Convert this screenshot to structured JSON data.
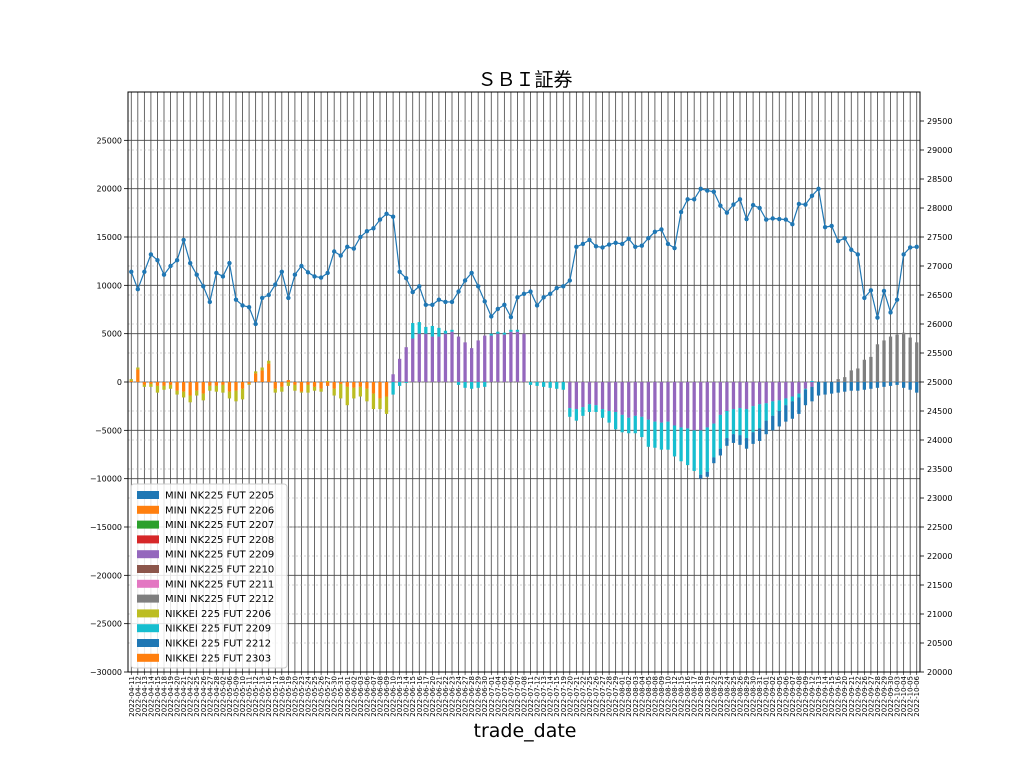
{
  "chart_data": {
    "type": "bar",
    "stacked": true,
    "title": "ＳＢＩ証券",
    "xlabel": "trade_date",
    "ylabel": "",
    "ylim": [
      -30000,
      30000
    ],
    "yticks": [
      -30000,
      -25000,
      -20000,
      -15000,
      -10000,
      -5000,
      0,
      5000,
      10000,
      15000,
      20000,
      25000
    ],
    "y2lim": [
      20000,
      30000
    ],
    "y2ticks": [
      20000,
      20500,
      21000,
      21500,
      22000,
      22500,
      23000,
      23500,
      24000,
      24500,
      25000,
      25500,
      26000,
      26500,
      27000,
      27500,
      28000,
      28500,
      29000,
      29500
    ],
    "grid": true,
    "legend_position": "lower-left",
    "dates": [
      "2022-04-11",
      "2022-04-12",
      "2022-04-13",
      "2022-04-14",
      "2022-04-15",
      "2022-04-18",
      "2022-04-19",
      "2022-04-20",
      "2022-04-21",
      "2022-04-22",
      "2022-04-25",
      "2022-04-26",
      "2022-04-27",
      "2022-04-28",
      "2022-05-02",
      "2022-05-06",
      "2022-05-09",
      "2022-05-10",
      "2022-05-11",
      "2022-05-12",
      "2022-05-13",
      "2022-05-16",
      "2022-05-17",
      "2022-05-18",
      "2022-05-19",
      "2022-05-20",
      "2022-05-23",
      "2022-05-24",
      "2022-05-25",
      "2022-05-26",
      "2022-05-27",
      "2022-05-30",
      "2022-05-31",
      "2022-06-01",
      "2022-06-02",
      "2022-06-03",
      "2022-06-06",
      "2022-06-07",
      "2022-06-08",
      "2022-06-09",
      "2022-06-10",
      "2022-06-13",
      "2022-06-14",
      "2022-06-15",
      "2022-06-16",
      "2022-06-17",
      "2022-06-20",
      "2022-06-21",
      "2022-06-22",
      "2022-06-23",
      "2022-06-24",
      "2022-06-27",
      "2022-06-28",
      "2022-06-29",
      "2022-06-30",
      "2022-07-01",
      "2022-07-04",
      "2022-07-05",
      "2022-07-06",
      "2022-07-07",
      "2022-07-08",
      "2022-07-11",
      "2022-07-12",
      "2022-07-13",
      "2022-07-14",
      "2022-07-15",
      "2022-07-19",
      "2022-07-20",
      "2022-07-21",
      "2022-07-22",
      "2022-07-25",
      "2022-07-26",
      "2022-07-27",
      "2022-07-28",
      "2022-07-29",
      "2022-08-01",
      "2022-08-02",
      "2022-08-03",
      "2022-08-04",
      "2022-08-05",
      "2022-08-08",
      "2022-08-09",
      "2022-08-10",
      "2022-08-12",
      "2022-08-15",
      "2022-08-16",
      "2022-08-17",
      "2022-08-18",
      "2022-08-19",
      "2022-08-22",
      "2022-08-23",
      "2022-08-24",
      "2022-08-25",
      "2022-08-26",
      "2022-08-29",
      "2022-08-30",
      "2022-08-31",
      "2022-09-01",
      "2022-09-02",
      "2022-09-05",
      "2022-09-06",
      "2022-09-07",
      "2022-09-08",
      "2022-09-09",
      "2022-09-12",
      "2022-09-13",
      "2022-09-14",
      "2022-09-15",
      "2022-09-16",
      "2022-09-20",
      "2022-09-21",
      "2022-09-22",
      "2022-09-26",
      "2022-09-27",
      "2022-09-28",
      "2022-09-29",
      "2022-09-30",
      "2022-10-03",
      "2022-10-04",
      "2022-10-05",
      "2022-10-06"
    ],
    "legend": [
      {
        "name": "MINI NK225 FUT 2205",
        "color": "#1f77b4"
      },
      {
        "name": "MINI NK225 FUT 2206",
        "color": "#ff7f0e"
      },
      {
        "name": "MINI NK225 FUT 2207",
        "color": "#2ca02c"
      },
      {
        "name": "MINI NK225 FUT 2208",
        "color": "#d62728"
      },
      {
        "name": "MINI NK225 FUT 2209",
        "color": "#9467bd"
      },
      {
        "name": "MINI NK225 FUT 2210",
        "color": "#8c564b"
      },
      {
        "name": "MINI NK225 FUT 2211",
        "color": "#e377c2"
      },
      {
        "name": "MINI NK225 FUT 2212",
        "color": "#7f7f7f"
      },
      {
        "name": "NIKKEI 225 FUT 2206",
        "color": "#bcbd22"
      },
      {
        "name": "NIKKEI 225 FUT 2209",
        "color": "#17becf"
      },
      {
        "name": "NIKKEI 225 FUT 2212",
        "color": "#1f77b4"
      },
      {
        "name": "NIKKEI 225 FUT 2303",
        "color": "#ff7f0e"
      }
    ],
    "bar_series": [
      {
        "name": "MINI NK225 FUT 2206",
        "color": "#ff7f0e",
        "values": [
          100,
          1300,
          -300,
          -200,
          -400,
          -400,
          -300,
          -900,
          -1000,
          -1400,
          -900,
          -1200,
          -400,
          -400,
          -300,
          -1000,
          -900,
          -700,
          -200,
          900,
          1200,
          1900,
          -700,
          -500,
          200,
          -300,
          -1000,
          -300,
          -500,
          -700,
          -400,
          -700,
          -200,
          -500,
          -600,
          -500,
          -700,
          -1200,
          -1700,
          -1500,
          0,
          0,
          0,
          0,
          0,
          0,
          0,
          0,
          0,
          0,
          0,
          0,
          0,
          0,
          0,
          0,
          0,
          0,
          0,
          0,
          0,
          0,
          0,
          0,
          0,
          0,
          0,
          0,
          0,
          0,
          0,
          0,
          0,
          0,
          0,
          0,
          0,
          0,
          0,
          0,
          0,
          0,
          0,
          0,
          0,
          0,
          0,
          0,
          0,
          0,
          0,
          0,
          0,
          0,
          0,
          0,
          0,
          0,
          0,
          0,
          0,
          0,
          0,
          0,
          0,
          0,
          0,
          0,
          0,
          0,
          0,
          0,
          0,
          0,
          0,
          0,
          0,
          0,
          0,
          0,
          0
        ]
      },
      {
        "name": "NIKKEI 225 FUT 2206",
        "color": "#bcbd22",
        "values": [
          200,
          200,
          -200,
          -300,
          -700,
          -400,
          -400,
          -400,
          -600,
          -700,
          -500,
          -700,
          -500,
          -600,
          -800,
          -700,
          -1100,
          -1100,
          -100,
          200,
          300,
          300,
          -400,
          -500,
          -400,
          -600,
          -100,
          -800,
          -400,
          -300,
          100,
          -700,
          -1500,
          -1900,
          -1100,
          -1000,
          -1300,
          -1600,
          -1100,
          -1800,
          0,
          0,
          0,
          0,
          0,
          0,
          0,
          0,
          0,
          0,
          0,
          0,
          0,
          0,
          0,
          0,
          0,
          0,
          0,
          0,
          0,
          0,
          0,
          0,
          0,
          0,
          0,
          0,
          0,
          0,
          0,
          0,
          0,
          0,
          0,
          0,
          0,
          0,
          0,
          0,
          0,
          0,
          0,
          0,
          0,
          0,
          0,
          0,
          0,
          0,
          0,
          0,
          0,
          0,
          0,
          0,
          0,
          0,
          0,
          0,
          0,
          0,
          0,
          0,
          0,
          0,
          0,
          0,
          0,
          0,
          0,
          0,
          0,
          0,
          0,
          0,
          0,
          0,
          0,
          0,
          0
        ]
      },
      {
        "name": "MINI NK225 FUT 2209",
        "color": "#9467bd",
        "values": [
          0,
          0,
          0,
          0,
          0,
          0,
          0,
          0,
          0,
          0,
          0,
          0,
          0,
          0,
          0,
          0,
          0,
          0,
          0,
          0,
          0,
          0,
          0,
          0,
          0,
          0,
          0,
          0,
          0,
          0,
          0,
          0,
          0,
          0,
          0,
          0,
          0,
          0,
          0,
          0,
          800,
          2400,
          3600,
          4500,
          5000,
          5000,
          4700,
          4700,
          5000,
          5200,
          4700,
          4100,
          3500,
          4300,
          4800,
          4800,
          5000,
          4900,
          5200,
          5200,
          5000,
          0,
          0,
          0,
          0,
          0,
          0,
          -2700,
          -2800,
          -2600,
          -2300,
          -2400,
          -2800,
          -3000,
          -3100,
          -3400,
          -3700,
          -3500,
          -3600,
          -3900,
          -4100,
          -4200,
          -4100,
          -4500,
          -4700,
          -4800,
          -5000,
          -5000,
          -4700,
          -4300,
          -3400,
          -3000,
          -2800,
          -2700,
          -2800,
          -2500,
          -2300,
          -2200,
          -2000,
          -1900,
          -1700,
          -1500,
          -1200,
          -700,
          -500,
          0,
          0,
          0,
          0,
          0,
          0,
          0,
          0,
          0,
          0,
          0,
          0,
          0,
          0,
          0,
          0
        ]
      },
      {
        "name": "NIKKEI 225 FUT 2209",
        "color": "#17becf",
        "values": [
          0,
          0,
          0,
          0,
          0,
          0,
          0,
          0,
          0,
          0,
          0,
          0,
          0,
          0,
          0,
          0,
          0,
          0,
          0,
          0,
          0,
          0,
          0,
          0,
          0,
          0,
          0,
          0,
          0,
          0,
          0,
          0,
          0,
          0,
          0,
          0,
          0,
          0,
          0,
          0,
          -1300,
          -400,
          -100,
          1600,
          1200,
          700,
          1100,
          900,
          300,
          200,
          -300,
          -600,
          -700,
          -600,
          -500,
          200,
          200,
          200,
          200,
          200,
          0,
          -300,
          -400,
          -500,
          -600,
          -700,
          -800,
          -900,
          -1200,
          -900,
          -800,
          -700,
          -900,
          -1200,
          -1800,
          -1800,
          -1600,
          -1800,
          -2100,
          -2800,
          -2700,
          -2800,
          -2900,
          -3200,
          -3500,
          -3800,
          -4200,
          -4600,
          -4600,
          -3500,
          -3500,
          -2800,
          -2600,
          -2800,
          -3000,
          -2700,
          -2500,
          -1800,
          -1500,
          -1100,
          -700,
          -500,
          -400,
          -100,
          100,
          0,
          0,
          0,
          0,
          0,
          0,
          0,
          0,
          0,
          0,
          0,
          0,
          0,
          0,
          0,
          0
        ]
      },
      {
        "name": "MINI NK225 FUT 2212",
        "color": "#7f7f7f",
        "values": [
          0,
          0,
          0,
          0,
          0,
          0,
          0,
          0,
          0,
          0,
          0,
          0,
          0,
          0,
          0,
          0,
          0,
          0,
          0,
          0,
          0,
          0,
          0,
          0,
          0,
          0,
          0,
          0,
          0,
          0,
          0,
          0,
          0,
          0,
          0,
          0,
          0,
          0,
          0,
          0,
          0,
          0,
          0,
          0,
          0,
          0,
          0,
          0,
          0,
          0,
          0,
          0,
          0,
          0,
          0,
          0,
          0,
          0,
          0,
          0,
          0,
          0,
          0,
          0,
          0,
          0,
          0,
          0,
          0,
          0,
          0,
          0,
          0,
          0,
          0,
          0,
          0,
          0,
          0,
          0,
          0,
          0,
          0,
          0,
          0,
          0,
          0,
          0,
          0,
          0,
          0,
          0,
          0,
          0,
          0,
          0,
          0,
          0,
          0,
          0,
          0,
          0,
          0,
          0,
          0,
          0,
          0,
          0,
          300,
          500,
          1200,
          1400,
          2300,
          2600,
          3900,
          4300,
          4700,
          4900,
          5100,
          4600,
          4100,
          3700,
          3300
        ]
      },
      {
        "name": "NIKKEI 225 FUT 2212",
        "color": "#1f77b4",
        "values": [
          0,
          0,
          0,
          0,
          0,
          0,
          0,
          0,
          0,
          0,
          0,
          0,
          0,
          0,
          0,
          0,
          0,
          0,
          0,
          0,
          0,
          0,
          0,
          0,
          0,
          0,
          0,
          0,
          0,
          0,
          0,
          0,
          0,
          0,
          0,
          0,
          0,
          0,
          0,
          0,
          0,
          0,
          0,
          0,
          0,
          0,
          0,
          0,
          0,
          0,
          0,
          0,
          0,
          0,
          0,
          0,
          0,
          0,
          0,
          0,
          0,
          0,
          0,
          0,
          0,
          0,
          0,
          0,
          0,
          0,
          0,
          0,
          0,
          0,
          0,
          0,
          0,
          0,
          0,
          0,
          0,
          0,
          0,
          0,
          0,
          0,
          0,
          -400,
          -500,
          -600,
          -700,
          -800,
          -900,
          -1000,
          -1100,
          -1200,
          -1300,
          -1400,
          -1500,
          -1600,
          -1700,
          -1800,
          -1700,
          -1600,
          -1500,
          -1400,
          -1300,
          -1200,
          -1100,
          -1000,
          -900,
          -900,
          -800,
          -700,
          -600,
          -500,
          -400,
          -300,
          -600,
          -800,
          -1100,
          -1400
        ]
      }
    ],
    "line_series": {
      "name": "",
      "color": "#1f77b4",
      "axis": "right",
      "values": [
        26900,
        26600,
        26900,
        27200,
        27100,
        26850,
        27000,
        27100,
        27450,
        27050,
        26850,
        26650,
        26380,
        26880,
        26820,
        27050,
        26420,
        26320,
        26290,
        26000,
        26450,
        26500,
        26680,
        26900,
        26450,
        26850,
        27000,
        26890,
        26820,
        26800,
        26880,
        27250,
        27180,
        27330,
        27300,
        27500,
        27600,
        27650,
        27800,
        27900,
        27850,
        26900,
        26790,
        26550,
        26650,
        26330,
        26330,
        26420,
        26380,
        26380,
        26560,
        26750,
        26880,
        26650,
        26390,
        26130,
        26260,
        26330,
        26120,
        26460,
        26520,
        26560,
        26320,
        26460,
        26520,
        26620,
        26650,
        26750,
        27330,
        27380,
        27450,
        27340,
        27320,
        27370,
        27400,
        27380,
        27470,
        27330,
        27350,
        27480,
        27590,
        27630,
        27380,
        27310,
        27930,
        28150,
        28150,
        28330,
        28300,
        28280,
        28040,
        27920,
        28060,
        28150,
        27810,
        28050,
        28000,
        27800,
        27820,
        27810,
        27800,
        27720,
        28070,
        28060,
        28210,
        28330,
        27670,
        27690,
        27430,
        27480,
        27280,
        27200,
        26450,
        26580,
        26110,
        26570,
        26200,
        26420,
        27200,
        27320,
        27330
      ]
    }
  }
}
